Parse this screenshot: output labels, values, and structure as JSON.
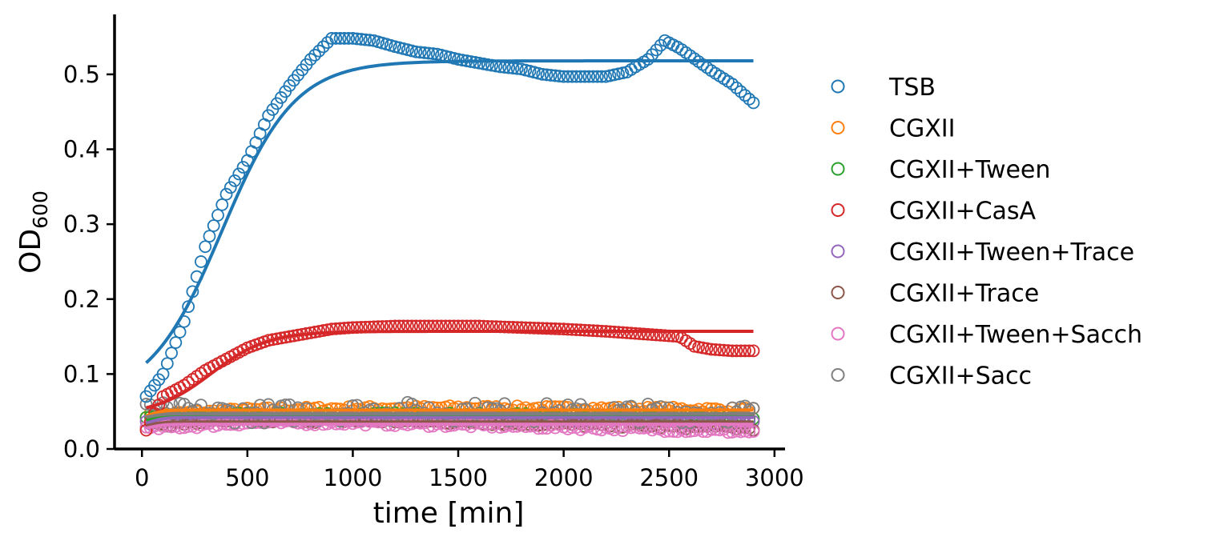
{
  "chart_data": {
    "type": "scatter",
    "xlabel": "time [min]",
    "ylabel_main": "OD",
    "ylabel_sub": "600",
    "xlim": [
      -130,
      3050
    ],
    "ylim": [
      0,
      0.58
    ],
    "xticks": [
      0,
      500,
      1000,
      1500,
      2000,
      2500,
      3000
    ],
    "yticks": [
      0.0,
      0.1,
      0.2,
      0.3,
      0.4,
      0.5
    ],
    "ytick_labels": [
      "0.0",
      "0.1",
      "0.2",
      "0.3",
      "0.4",
      "0.5"
    ],
    "grid": false,
    "legend_position": "right-outside",
    "markers": "open circles (measured)",
    "lines": "solid fitted curves",
    "x_start": 20,
    "x_end": 2900,
    "x_step": 20,
    "series": [
      {
        "name": "TSB",
        "color": "#1f77b4",
        "points": [
          [
            20,
            0.07
          ],
          [
            100,
            0.1
          ],
          [
            200,
            0.17
          ],
          [
            300,
            0.27
          ],
          [
            400,
            0.34
          ],
          [
            500,
            0.385
          ],
          [
            600,
            0.445
          ],
          [
            700,
            0.485
          ],
          [
            800,
            0.52
          ],
          [
            900,
            0.548
          ],
          [
            1000,
            0.548
          ],
          [
            1100,
            0.545
          ],
          [
            1200,
            0.537
          ],
          [
            1300,
            0.53
          ],
          [
            1400,
            0.527
          ],
          [
            1500,
            0.52
          ],
          [
            1600,
            0.515
          ],
          [
            1700,
            0.51
          ],
          [
            1800,
            0.507
          ],
          [
            1900,
            0.5
          ],
          [
            2000,
            0.497
          ],
          [
            2100,
            0.497
          ],
          [
            2200,
            0.497
          ],
          [
            2300,
            0.503
          ],
          [
            2400,
            0.52
          ],
          [
            2480,
            0.545
          ],
          [
            2550,
            0.535
          ],
          [
            2600,
            0.525
          ],
          [
            2700,
            0.505
          ],
          [
            2800,
            0.487
          ],
          [
            2900,
            0.462
          ]
        ],
        "fit": {
          "ymin": 0.065,
          "ymax": 0.518,
          "x0": 380,
          "k": 0.0058
        }
      },
      {
        "name": "CGXII",
        "color": "#ff7f0e",
        "points": [
          [
            20,
            0.045
          ],
          [
            500,
            0.052
          ],
          [
            1000,
            0.054
          ],
          [
            1500,
            0.055
          ],
          [
            2000,
            0.054
          ],
          [
            2500,
            0.053
          ],
          [
            2900,
            0.052
          ]
        ],
        "fit": {
          "ymin": 0.04,
          "ymax": 0.052,
          "x0": 40,
          "k": 0.03
        }
      },
      {
        "name": "CGXII+Tween",
        "color": "#2ca02c",
        "points": [
          [
            20,
            0.04
          ],
          [
            500,
            0.045
          ],
          [
            1000,
            0.046
          ],
          [
            1500,
            0.045
          ],
          [
            2000,
            0.044
          ],
          [
            2500,
            0.043
          ],
          [
            2900,
            0.042
          ]
        ],
        "fit": {
          "ymin": 0.035,
          "ymax": 0.045,
          "x0": 40,
          "k": 0.03
        }
      },
      {
        "name": "CGXII+CasA",
        "color": "#d62728",
        "points": [
          [
            20,
            0.025
          ],
          [
            100,
            0.07
          ],
          [
            200,
            0.085
          ],
          [
            300,
            0.105
          ],
          [
            400,
            0.12
          ],
          [
            500,
            0.135
          ],
          [
            600,
            0.145
          ],
          [
            700,
            0.15
          ],
          [
            800,
            0.155
          ],
          [
            900,
            0.16
          ],
          [
            1000,
            0.162
          ],
          [
            1200,
            0.164
          ],
          [
            1400,
            0.164
          ],
          [
            1600,
            0.164
          ],
          [
            1800,
            0.162
          ],
          [
            2000,
            0.16
          ],
          [
            2200,
            0.157
          ],
          [
            2400,
            0.153
          ],
          [
            2550,
            0.15
          ],
          [
            2620,
            0.137
          ],
          [
            2700,
            0.133
          ],
          [
            2800,
            0.131
          ],
          [
            2900,
            0.131
          ]
        ],
        "fit": {
          "ymin": 0.045,
          "ymax": 0.157,
          "x0": 330,
          "k": 0.0075
        }
      },
      {
        "name": "CGXII+Tween+Trace",
        "color": "#9467bd",
        "points": [
          [
            20,
            0.035
          ],
          [
            500,
            0.042
          ],
          [
            1000,
            0.043
          ],
          [
            1500,
            0.042
          ],
          [
            2000,
            0.04
          ],
          [
            2500,
            0.037
          ],
          [
            2900,
            0.035
          ]
        ],
        "fit": {
          "ymin": 0.03,
          "ymax": 0.042,
          "x0": 40,
          "k": 0.03
        }
      },
      {
        "name": "CGXII+Trace",
        "color": "#8c564b",
        "points": [
          [
            20,
            0.032
          ],
          [
            500,
            0.038
          ],
          [
            1000,
            0.038
          ],
          [
            1500,
            0.036
          ],
          [
            2000,
            0.033
          ],
          [
            2500,
            0.03
          ],
          [
            2900,
            0.028
          ]
        ],
        "fit": {
          "ymin": 0.028,
          "ymax": 0.036,
          "x0": 40,
          "k": 0.03
        }
      },
      {
        "name": "CGXII+Tween+Sacch",
        "color": "#e377c2",
        "points": [
          [
            20,
            0.027
          ],
          [
            500,
            0.035
          ],
          [
            1000,
            0.035
          ],
          [
            1500,
            0.032
          ],
          [
            2000,
            0.029
          ],
          [
            2500,
            0.026
          ],
          [
            2900,
            0.023
          ]
        ],
        "fit": {
          "ymin": 0.025,
          "ymax": 0.033,
          "x0": 40,
          "k": 0.03
        }
      },
      {
        "name": "CGXII+Sacc",
        "color": "#7f7f7f",
        "points": [
          [
            20,
            0.05
          ],
          [
            500,
            0.047
          ],
          [
            1000,
            0.05
          ],
          [
            1500,
            0.05
          ],
          [
            2000,
            0.048
          ],
          [
            2500,
            0.048
          ],
          [
            2900,
            0.048
          ]
        ],
        "fit": {
          "ymin": 0.04,
          "ymax": 0.047,
          "x0": 40,
          "k": 0.03
        },
        "scatter_noise": 0.013
      }
    ]
  }
}
